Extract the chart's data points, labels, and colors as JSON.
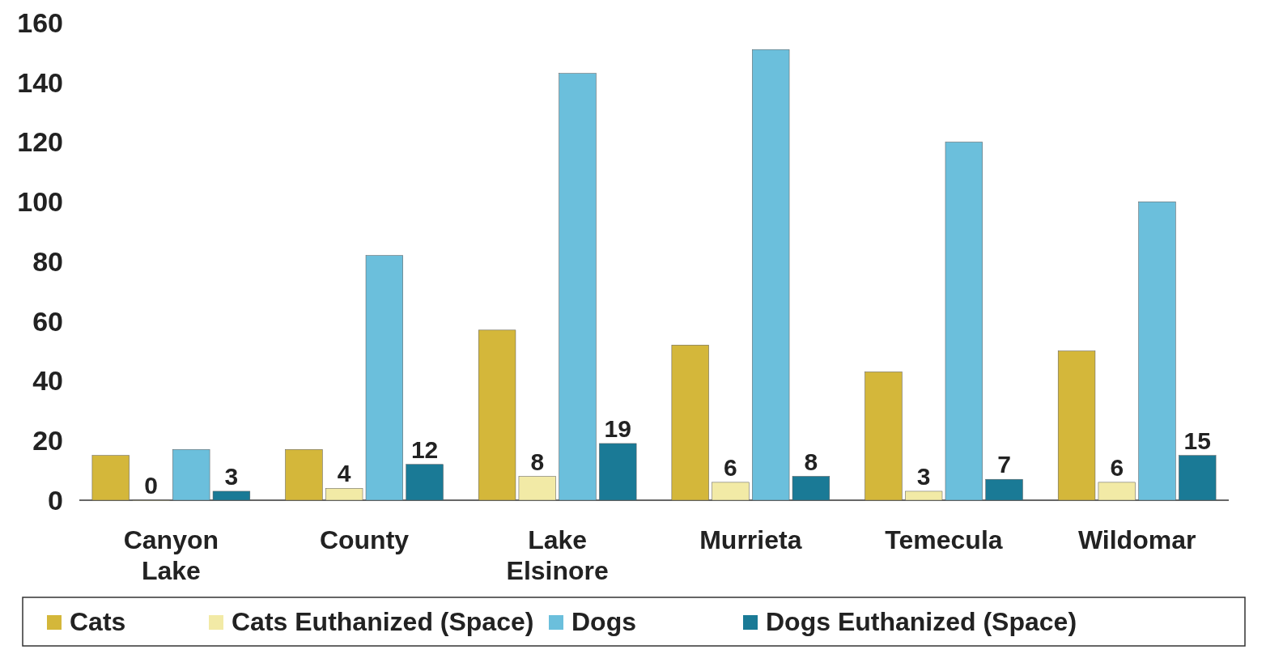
{
  "chart_data": {
    "type": "bar",
    "categories": [
      "Canyon Lake",
      "County",
      "Lake Elsinore",
      "Murrieta",
      "Temecula",
      "Wildomar"
    ],
    "series": [
      {
        "name": "Cats",
        "color": "#d4b73a",
        "values": [
          15,
          17,
          57,
          52,
          43,
          50
        ]
      },
      {
        "name": "Cats Euthanized (Space)",
        "color": "#f2eaa6",
        "values": [
          0,
          4,
          8,
          6,
          3,
          6
        ],
        "value_labels": [
          "0",
          "4",
          "8",
          "6",
          "3",
          "6"
        ]
      },
      {
        "name": "Dogs",
        "color": "#6bbfdc",
        "values": [
          17,
          82,
          143,
          151,
          120,
          100
        ]
      },
      {
        "name": "Dogs Euthanized (Space)",
        "color": "#1a7a96",
        "values": [
          3,
          12,
          19,
          8,
          7,
          15
        ],
        "value_labels": [
          "3",
          "12",
          "19",
          "8",
          "7",
          "15"
        ]
      }
    ],
    "ylim": [
      0,
      160
    ],
    "yticks": [
      0,
      20,
      40,
      60,
      80,
      100,
      120,
      140,
      160
    ],
    "grid": false,
    "legend": "bottom"
  }
}
